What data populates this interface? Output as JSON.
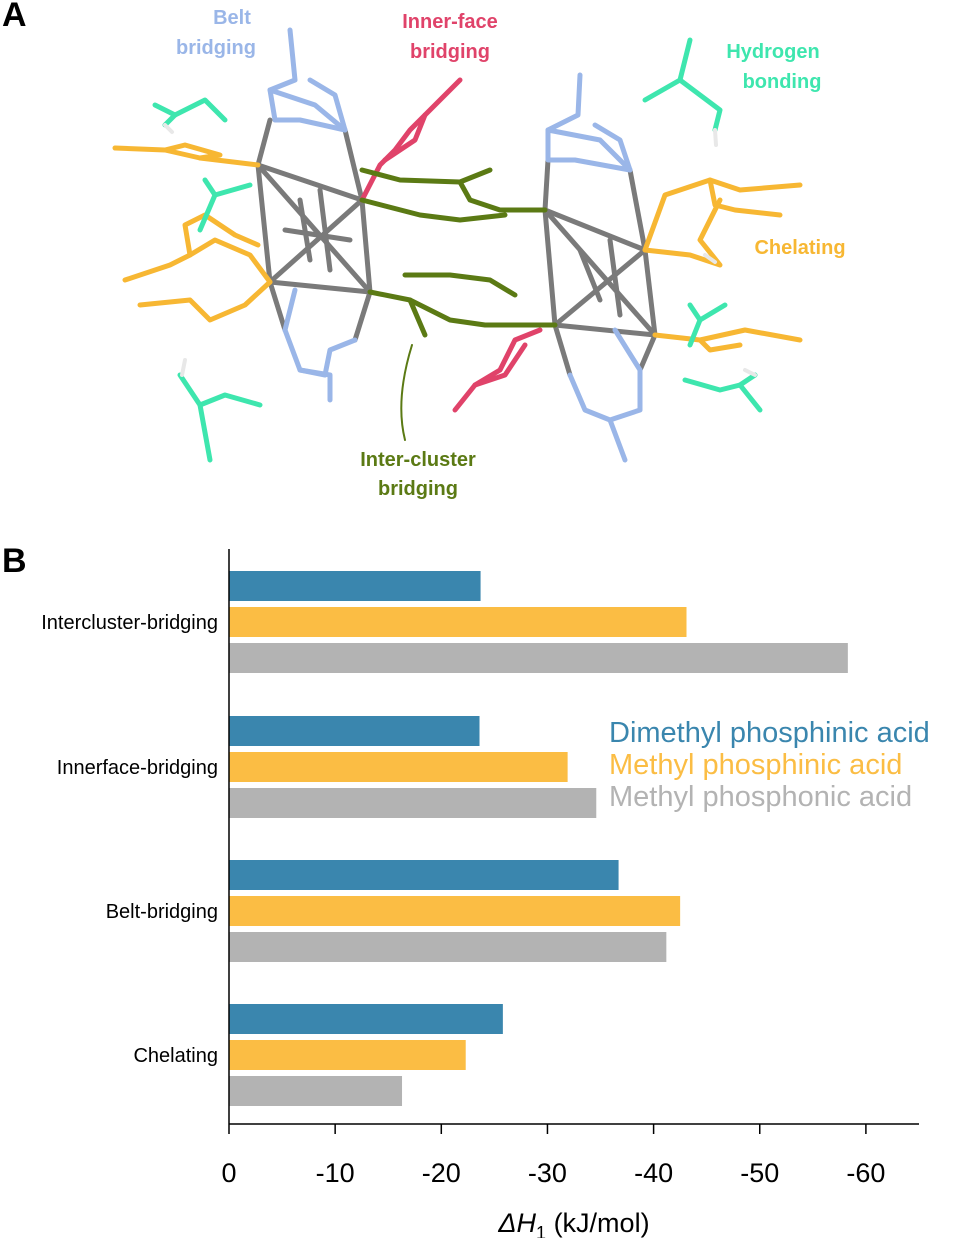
{
  "panel_a": {
    "letter": "A",
    "labels": {
      "belt": [
        "Belt",
        "bridging"
      ],
      "inner": [
        "Inner-face",
        "bridging"
      ],
      "hbond": [
        "Hydrogen",
        "bonding"
      ],
      "chelating": [
        "Chelating"
      ],
      "inter": [
        "Inter-cluster",
        "bridging"
      ]
    },
    "colors": {
      "belt": "#9ab6e8",
      "inner": "#e0436a",
      "hbond": "#3ee6ae",
      "chelating": "#f7b733",
      "inter": "#5b7a14",
      "core": "#7a7a7a"
    }
  },
  "panel_b": {
    "letter": "B"
  },
  "chart_data": {
    "type": "bar",
    "orientation": "horizontal",
    "categories": [
      "Intercluster-bridging",
      "Innerface-bridging",
      "Belt-bridging",
      "Chelating"
    ],
    "series": [
      {
        "name": "Dimethyl phosphinic acid",
        "color": "#3a86ae",
        "values": [
          -23.7,
          -23.6,
          -36.7,
          -25.8
        ]
      },
      {
        "name": "Methyl phosphinic acid",
        "color": "#fbbd44",
        "values": [
          -43.1,
          -31.9,
          -42.5,
          -22.3
        ]
      },
      {
        "name": "Methyl phosphonic acid",
        "color": "#b3b3b3",
        "values": [
          -58.3,
          -34.6,
          -41.2,
          -16.3
        ]
      }
    ],
    "xlim": [
      0,
      -65
    ],
    "xticks": [
      0,
      -10,
      -20,
      -30,
      -40,
      -50,
      -60
    ],
    "xtick_labels": [
      "0",
      "-10",
      "-20",
      "-30",
      "-40",
      "-50",
      "-60"
    ],
    "xlabel": {
      "prefix": "ΔH",
      "sub": "1",
      "suffix": " (kJ/mol)"
    },
    "ylabel": "",
    "legend_position": "right-middle",
    "grid": false
  }
}
